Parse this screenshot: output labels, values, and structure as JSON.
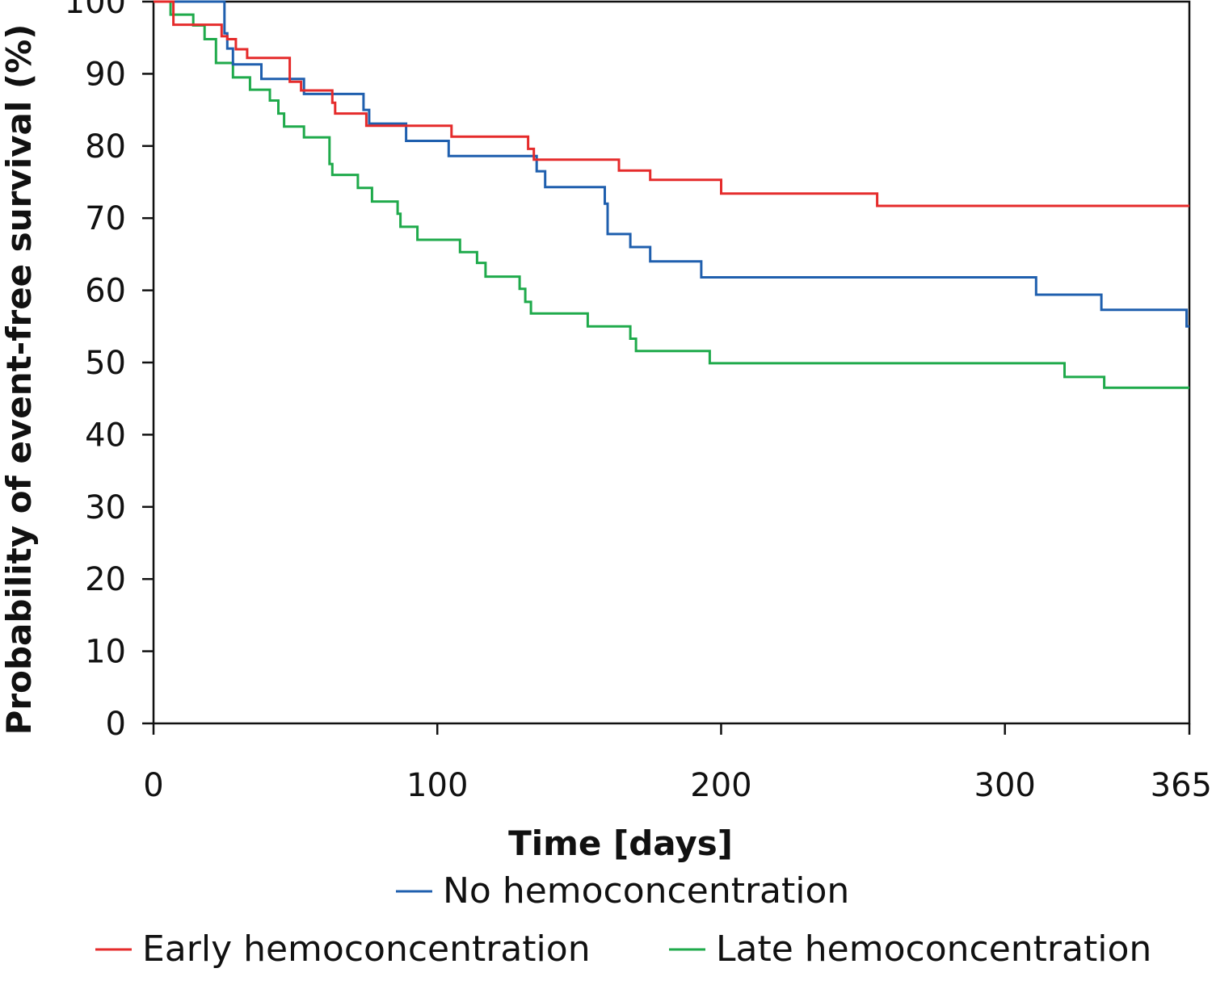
{
  "chart_data": {
    "type": "line",
    "subtype": "kaplan-meier-step",
    "xlabel": "Time [days]",
    "ylabel": "Probability of event-free survival (%)",
    "xlim": [
      0,
      365
    ],
    "ylim": [
      0,
      100
    ],
    "x_ticks": [
      0,
      100,
      200,
      300,
      365
    ],
    "y_ticks": [
      0,
      10,
      20,
      30,
      40,
      50,
      60,
      70,
      80,
      90,
      100
    ],
    "grid": false,
    "legend_position": "bottom",
    "series": [
      {
        "name": "No hemoconcentration",
        "color": "#1f5fae",
        "x": [
          0,
          24,
          25,
          26,
          28,
          38,
          53,
          74,
          76,
          79,
          89,
          104,
          135,
          138,
          159,
          160,
          161,
          168,
          175,
          193,
          311,
          334,
          364,
          365
        ],
        "y": [
          100,
          100,
          95.6,
          93.5,
          91.3,
          89.3,
          87.2,
          85.0,
          83.1,
          83.1,
          80.7,
          78.6,
          76.5,
          74.3,
          72.0,
          67.8,
          67.8,
          66.0,
          64.0,
          61.8,
          59.4,
          57.3,
          55.0,
          55.0
        ]
      },
      {
        "name": "Early hemoconcentration",
        "color": "#e52b2b",
        "x": [
          0,
          6,
          7,
          24,
          26,
          29,
          33,
          48,
          52,
          63,
          64,
          75,
          105,
          132,
          134,
          164,
          175,
          200,
          255,
          365
        ],
        "y": [
          100,
          100,
          96.8,
          95.2,
          94.8,
          93.4,
          92.2,
          88.9,
          87.7,
          86.0,
          84.5,
          82.8,
          81.3,
          79.6,
          78.1,
          76.6,
          75.3,
          73.4,
          71.7,
          71.7
        ]
      },
      {
        "name": "Late hemoconcentration",
        "color": "#1faa4b",
        "x": [
          0,
          5,
          6,
          14,
          18,
          22,
          28,
          34,
          41,
          44,
          46,
          48,
          53,
          62,
          63,
          72,
          77,
          86,
          87,
          93,
          108,
          114,
          117,
          129,
          131,
          133,
          153,
          168,
          170,
          196,
          321,
          335,
          365
        ],
        "y": [
          100,
          100,
          98.2,
          96.7,
          94.8,
          91.5,
          89.5,
          87.8,
          86.3,
          84.5,
          82.7,
          82.7,
          81.2,
          77.5,
          76.0,
          74.2,
          72.3,
          70.6,
          68.8,
          67.0,
          65.3,
          63.8,
          61.9,
          60.2,
          58.4,
          56.8,
          55.0,
          53.3,
          51.6,
          49.9,
          48.0,
          46.5,
          46.5
        ]
      }
    ]
  }
}
